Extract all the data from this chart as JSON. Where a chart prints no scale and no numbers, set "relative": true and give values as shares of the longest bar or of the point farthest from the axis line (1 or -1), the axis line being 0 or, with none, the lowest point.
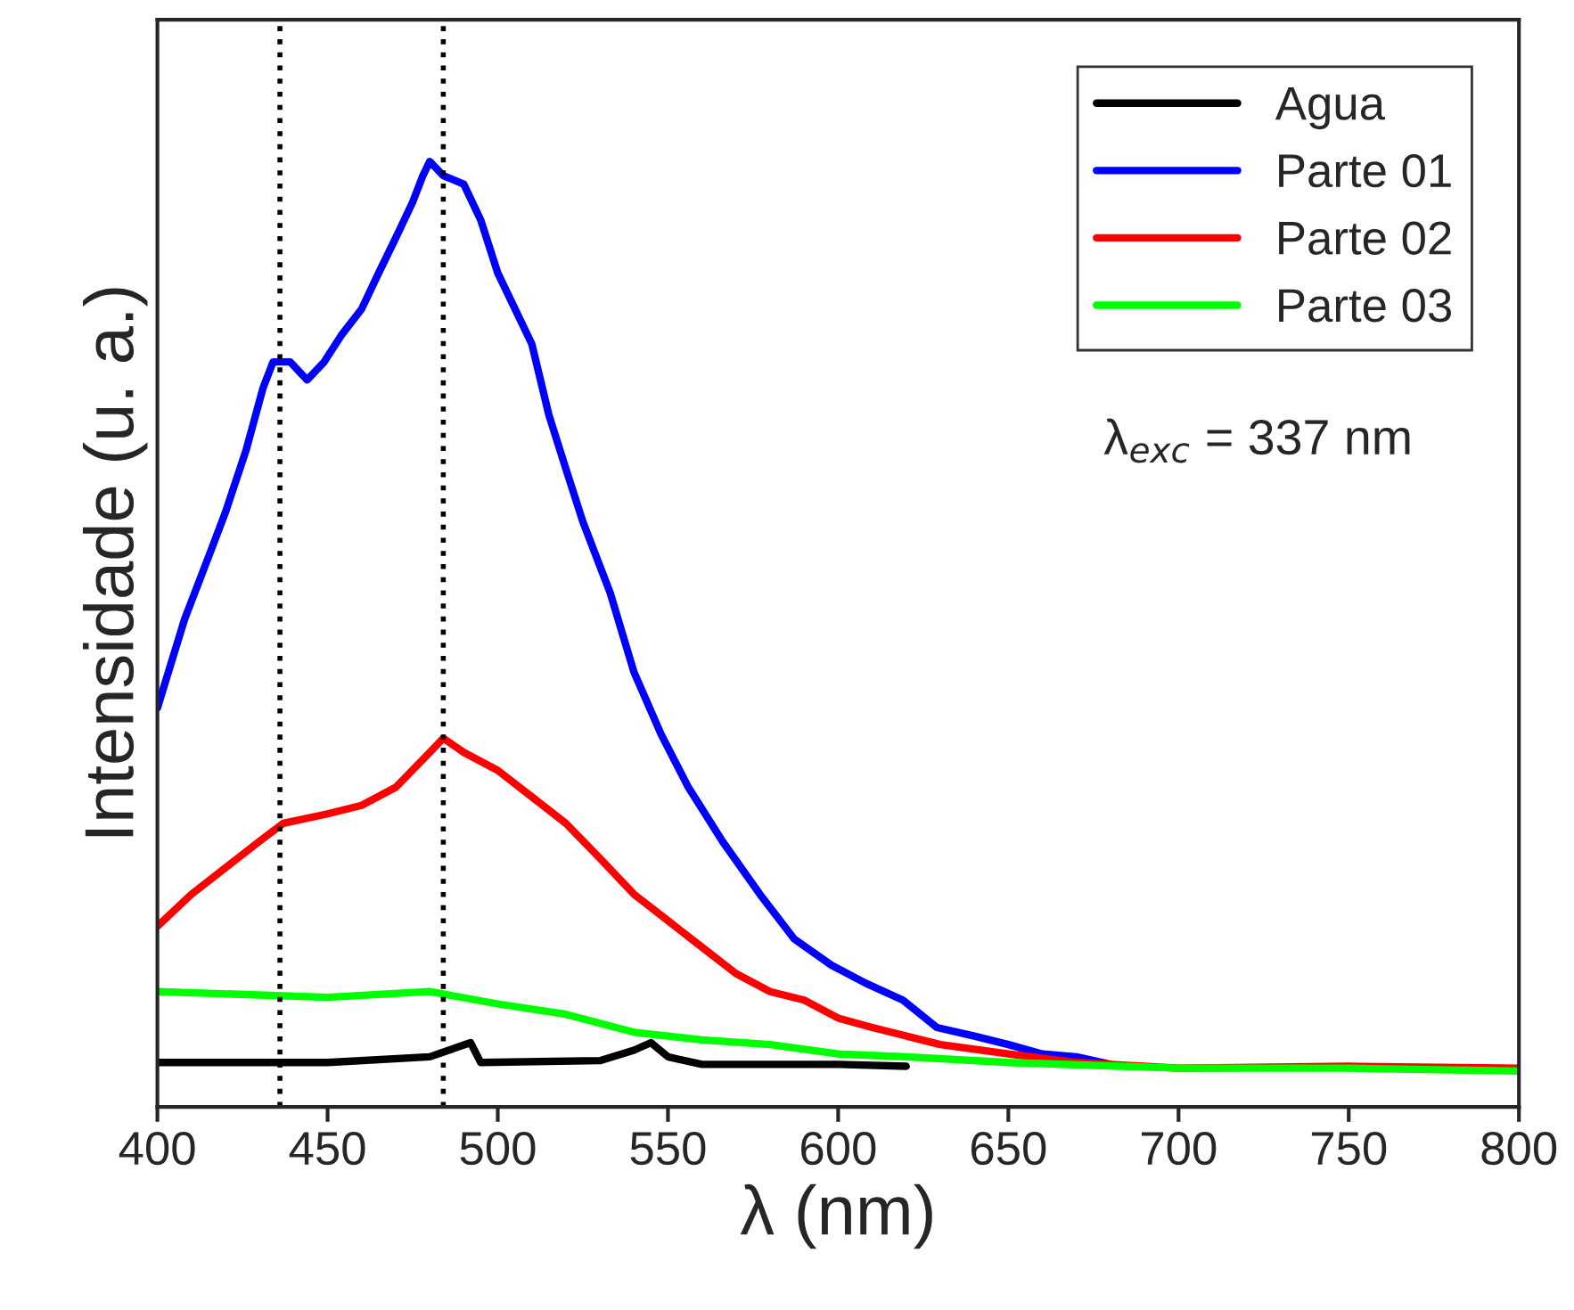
{
  "chart_data": {
    "type": "line",
    "xlabel": "λ (nm)",
    "ylabel": "Intensidade (u. a.)",
    "relative": true,
    "xlim": [
      400,
      800
    ],
    "xticks": [
      400,
      450,
      500,
      550,
      600,
      650,
      700,
      750,
      800
    ],
    "grid": false,
    "legend": "top right",
    "line_style": "solid",
    "marker": "none",
    "annotations": [
      "λ$_{exc}$ = 337 nm"
    ],
    "ref_lines": [
      {
        "axis": "x",
        "value": 436,
        "color": "#000000",
        "line_style": "dotted"
      },
      {
        "axis": "x",
        "value": 484,
        "color": "#000000",
        "line_style": "dotted"
      }
    ],
    "series": [
      {
        "name": "Agua",
        "color": "#000000",
        "x": [
          400,
          450,
          480,
          492,
          495,
          530,
          540,
          545,
          550,
          560,
          600,
          620
        ],
        "values": [
          0.047,
          0.047,
          0.053,
          0.068,
          0.047,
          0.049,
          0.06,
          0.068,
          0.053,
          0.045,
          0.045,
          0.043
        ]
      },
      {
        "name": "Parte 01",
        "color": "#0000ff",
        "x": [
          400,
          408,
          416,
          420,
          426,
          431,
          434,
          439,
          444,
          449,
          454,
          460,
          465,
          470,
          475,
          478,
          480,
          484,
          490,
          495,
          500,
          510,
          515,
          520,
          525,
          533,
          540,
          548,
          556,
          566,
          577,
          587,
          598,
          608,
          619,
          629,
          640,
          650,
          660,
          670,
          680
        ],
        "values": [
          0.422,
          0.516,
          0.591,
          0.629,
          0.694,
          0.76,
          0.788,
          0.788,
          0.769,
          0.788,
          0.816,
          0.844,
          0.882,
          0.919,
          0.957,
          0.985,
          1,
          0.985,
          0.976,
          0.938,
          0.882,
          0.807,
          0.732,
          0.675,
          0.619,
          0.544,
          0.46,
          0.394,
          0.338,
          0.281,
          0.225,
          0.178,
          0.15,
          0.131,
          0.113,
          0.084,
          0.075,
          0.066,
          0.056,
          0.053,
          0.045
        ]
      },
      {
        "name": "Parte 02",
        "color": "#ff0000",
        "x": [
          400,
          410,
          420,
          430,
          437,
          450,
          460,
          470,
          480,
          484,
          490,
          500,
          510,
          520,
          530,
          540,
          550,
          560,
          570,
          580,
          590,
          600,
          610,
          620,
          630,
          650,
          670,
          700,
          750,
          800
        ],
        "values": [
          0.191,
          0.225,
          0.253,
          0.281,
          0.3,
          0.31,
          0.319,
          0.338,
          0.375,
          0.39,
          0.375,
          0.356,
          0.328,
          0.3,
          0.263,
          0.225,
          0.197,
          0.169,
          0.141,
          0.122,
          0.113,
          0.094,
          0.084,
          0.075,
          0.066,
          0.056,
          0.047,
          0.041,
          0.043,
          0.041
        ]
      },
      {
        "name": "Parte 03",
        "color": "#00ff00",
        "x": [
          400,
          450,
          480,
          500,
          520,
          540,
          560,
          580,
          600,
          620,
          650,
          700,
          750,
          800
        ],
        "values": [
          0.122,
          0.116,
          0.122,
          0.109,
          0.098,
          0.079,
          0.071,
          0.066,
          0.056,
          0.053,
          0.047,
          0.041,
          0.041,
          0.038
        ]
      }
    ]
  }
}
